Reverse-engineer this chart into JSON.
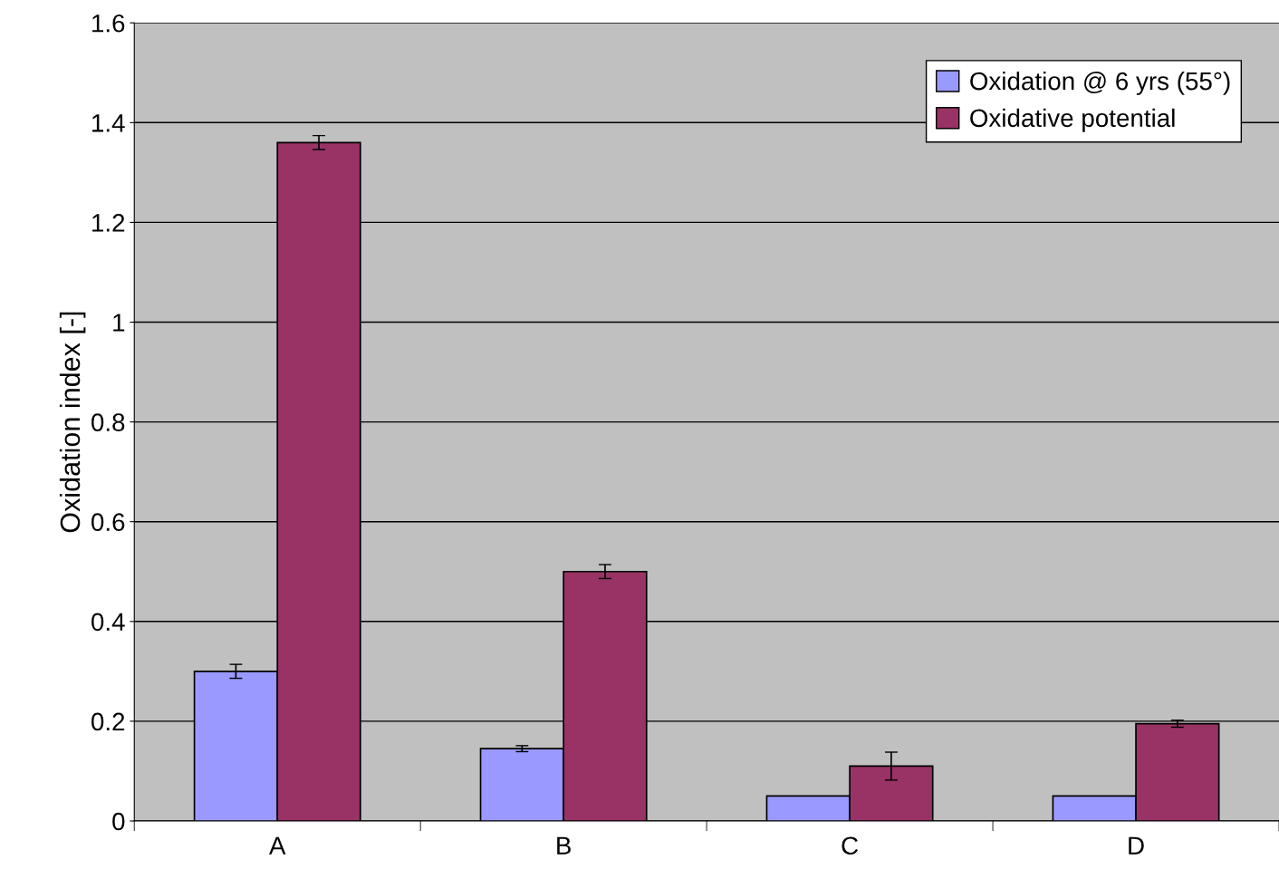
{
  "chart_data": {
    "type": "bar",
    "ylabel": "Oxidation index [-]",
    "categories": [
      "A",
      "B",
      "C",
      "D"
    ],
    "series": [
      {
        "name": "Oxidation @ 6 yrs (55°)",
        "color": "#9999ff",
        "values": [
          0.3,
          0.145,
          0.05,
          0.05
        ],
        "errors": [
          0.014,
          0.006,
          null,
          null
        ]
      },
      {
        "name": "Oxidative potential",
        "color": "#993366",
        "values": [
          1.36,
          0.5,
          0.11,
          0.195
        ],
        "errors": [
          0.014,
          0.014,
          0.028,
          0.007
        ]
      }
    ],
    "ylim": [
      0,
      1.6
    ],
    "yticks": [
      {
        "value": 0,
        "label": "0"
      },
      {
        "value": 0.2,
        "label": "0.2"
      },
      {
        "value": 0.4,
        "label": "0.4"
      },
      {
        "value": 0.6,
        "label": "0.6"
      },
      {
        "value": 0.8,
        "label": "0.8"
      },
      {
        "value": 1,
        "label": "1"
      },
      {
        "value": 1.2,
        "label": "1.2"
      },
      {
        "value": 1.4,
        "label": "1.4"
      },
      {
        "value": 1.6,
        "label": "1.6"
      }
    ],
    "grid": "y",
    "legend": "top right"
  }
}
